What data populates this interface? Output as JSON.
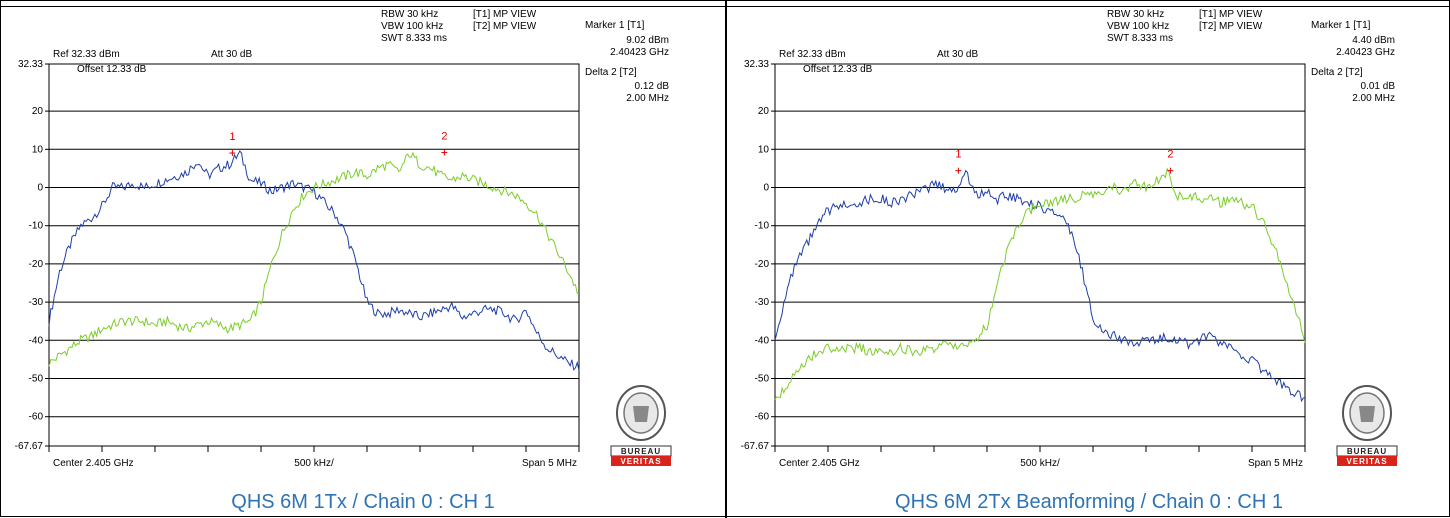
{
  "chart_data": [
    {
      "type": "line",
      "caption": "QHS 6M 1Tx / Chain 0 : CH 1",
      "header": {
        "ref": "Ref 32.33 dBm",
        "att": "Att  30 dB",
        "rbw": "RBW 30 kHz",
        "vbw": "VBW 100 kHz",
        "swt": "SWT 8.333 ms",
        "t1": "[T1] MP VIEW",
        "t2": "[T2] MP VIEW",
        "offset": "Offset 12.33 dB"
      },
      "markers_panel": {
        "marker1_label": "Marker 1 [T1]",
        "marker1_level": "9.02 dBm",
        "marker1_freq": "2.40423 GHz",
        "delta_label": "Delta 2 [T2]",
        "delta_level": "0.12 dB",
        "delta_freq": "2.00 MHz"
      },
      "y_ticks": [
        "32.33",
        "20",
        "10",
        "0",
        "-10",
        "-20",
        "-30",
        "-40",
        "-50",
        "-60",
        "-67.67"
      ],
      "ylim": [
        -67.67,
        32.33
      ],
      "x_labels": {
        "center": "Center 2.405 GHz",
        "div": "500 kHz/",
        "span": "Span 5 MHz"
      },
      "xlim": [
        2.4025,
        2.4075
      ],
      "markers": [
        {
          "label": "1",
          "x": 2.40423,
          "y": 9.02
        },
        {
          "label": "2",
          "x": 2.40623,
          "y": 9.14
        }
      ],
      "series": [
        {
          "color": "#1f3fa8",
          "x": [
            2.4025,
            2.4026,
            2.4027,
            2.4028,
            2.4029,
            2.403,
            2.4031,
            2.4032,
            2.4033,
            2.4034,
            2.4035,
            2.4036,
            2.4037,
            2.4038,
            2.4039,
            2.404,
            2.4041,
            2.4042,
            2.4043,
            2.4044,
            2.4045,
            2.4046,
            2.4047,
            2.4048,
            2.4049,
            2.405,
            2.4051,
            2.4052,
            2.4053,
            2.4054,
            2.4055,
            2.4056,
            2.4057,
            2.4058,
            2.4059,
            2.406,
            2.4061,
            2.4062,
            2.4063,
            2.4064,
            2.4065,
            2.4066,
            2.4067,
            2.4068,
            2.4069,
            2.407,
            2.4071,
            2.4072,
            2.4073,
            2.4074,
            2.4075
          ],
          "y": [
            -35,
            -22,
            -15,
            -10,
            -8,
            -5,
            0,
            0,
            1,
            0,
            1,
            2,
            3,
            4,
            7,
            3,
            5,
            6,
            9,
            2,
            1,
            -1,
            0,
            1,
            0,
            -1,
            -4,
            -7,
            -12,
            -20,
            -30,
            -33,
            -33,
            -32,
            -33,
            -34,
            -33,
            -32,
            -31,
            -34,
            -33,
            -32,
            -32,
            -33,
            -35,
            -32,
            -38,
            -42,
            -44,
            -46,
            -47
          ]
        },
        {
          "color": "#7ccd2a",
          "x": [
            2.4025,
            2.4026,
            2.4027,
            2.4028,
            2.4029,
            2.403,
            2.4031,
            2.4032,
            2.4033,
            2.4034,
            2.4035,
            2.4036,
            2.4037,
            2.4038,
            2.4039,
            2.404,
            2.4041,
            2.4042,
            2.4043,
            2.4044,
            2.4045,
            2.4046,
            2.4047,
            2.4048,
            2.4049,
            2.405,
            2.4051,
            2.4052,
            2.4053,
            2.4054,
            2.4055,
            2.4056,
            2.4057,
            2.4058,
            2.4059,
            2.406,
            2.4061,
            2.4062,
            2.4063,
            2.4064,
            2.4065,
            2.4066,
            2.4067,
            2.4068,
            2.4069,
            2.407,
            2.4071,
            2.4072,
            2.4073,
            2.4074,
            2.4075
          ],
          "y": [
            -46,
            -44,
            -42,
            -40,
            -39,
            -37,
            -36,
            -35,
            -35,
            -35,
            -36,
            -35,
            -36,
            -37,
            -36,
            -35,
            -36,
            -37,
            -36,
            -35,
            -30,
            -20,
            -12,
            -6,
            -2,
            0,
            1,
            2,
            3,
            4,
            3,
            5,
            6,
            4,
            9,
            6,
            5,
            3,
            2,
            3,
            2,
            1,
            0,
            -1,
            -2,
            -4,
            -7,
            -12,
            -17,
            -22,
            -28
          ]
        }
      ]
    },
    {
      "type": "line",
      "caption": "QHS 6M 2Tx Beamforming / Chain 0 : CH 1",
      "header": {
        "ref": "Ref 32.33 dBm",
        "att": "Att  30 dB",
        "rbw": "RBW 30 kHz",
        "vbw": "VBW 100 kHz",
        "swt": "SWT 8.333 ms",
        "t1": "[T1] MP VIEW",
        "t2": "[T2] MP VIEW",
        "offset": "Offset 12.33 dB"
      },
      "markers_panel": {
        "marker1_label": "Marker 1 [T1]",
        "marker1_level": "4.40 dBm",
        "marker1_freq": "2.40423 GHz",
        "delta_label": "Delta 2 [T2]",
        "delta_level": "0.01 dB",
        "delta_freq": "2.00 MHz"
      },
      "y_ticks": [
        "32.33",
        "20",
        "10",
        "0",
        "-10",
        "-20",
        "-30",
        "-40",
        "-50",
        "-60",
        "-67.67"
      ],
      "ylim": [
        -67.67,
        32.33
      ],
      "x_labels": {
        "center": "Center 2.405 GHz",
        "div": "500 kHz/",
        "span": "Span 5 MHz"
      },
      "xlim": [
        2.4025,
        2.4075
      ],
      "markers": [
        {
          "label": "1",
          "x": 2.40423,
          "y": 4.4
        },
        {
          "label": "2",
          "x": 2.40623,
          "y": 4.41
        }
      ],
      "series": [
        {
          "color": "#1f3fa8",
          "x": [
            2.4025,
            2.4026,
            2.4027,
            2.4028,
            2.4029,
            2.403,
            2.4031,
            2.4032,
            2.4033,
            2.4034,
            2.4035,
            2.4036,
            2.4037,
            2.4038,
            2.4039,
            2.404,
            2.4041,
            2.4042,
            2.4043,
            2.4044,
            2.4045,
            2.4046,
            2.4047,
            2.4048,
            2.4049,
            2.405,
            2.4051,
            2.4052,
            2.4053,
            2.4054,
            2.4055,
            2.4056,
            2.4057,
            2.4058,
            2.4059,
            2.406,
            2.4061,
            2.4062,
            2.4063,
            2.4064,
            2.4065,
            2.4066,
            2.4067,
            2.4068,
            2.4069,
            2.407,
            2.4071,
            2.4072,
            2.4073,
            2.4074,
            2.4075
          ],
          "y": [
            -40,
            -28,
            -20,
            -15,
            -10,
            -6,
            -5,
            -4,
            -4,
            -3,
            -3,
            -4,
            -3,
            -2,
            -1,
            1,
            0,
            -1,
            4,
            -2,
            -1,
            -3,
            -2,
            -3,
            -4,
            -5,
            -6,
            -8,
            -12,
            -22,
            -34,
            -38,
            -39,
            -40,
            -41,
            -40,
            -40,
            -39,
            -40,
            -41,
            -40,
            -39,
            -41,
            -42,
            -44,
            -45,
            -48,
            -50,
            -52,
            -54,
            -55
          ]
        },
        {
          "color": "#7ccd2a",
          "x": [
            2.4025,
            2.4026,
            2.4027,
            2.4028,
            2.4029,
            2.403,
            2.4031,
            2.4032,
            2.4033,
            2.4034,
            2.4035,
            2.4036,
            2.4037,
            2.4038,
            2.4039,
            2.404,
            2.4041,
            2.4042,
            2.4043,
            2.4044,
            2.4045,
            2.4046,
            2.4047,
            2.4048,
            2.4049,
            2.405,
            2.4051,
            2.4052,
            2.4053,
            2.4054,
            2.4055,
            2.4056,
            2.4057,
            2.4058,
            2.4059,
            2.406,
            2.4061,
            2.4062,
            2.4063,
            2.4064,
            2.4065,
            2.4066,
            2.4067,
            2.4068,
            2.4069,
            2.407,
            2.4071,
            2.4072,
            2.4073,
            2.4074,
            2.4075
          ],
          "y": [
            -56,
            -52,
            -48,
            -45,
            -43,
            -42,
            -43,
            -42,
            -42,
            -43,
            -42,
            -43,
            -42,
            -43,
            -43,
            -42,
            -41,
            -42,
            -41,
            -40,
            -36,
            -25,
            -16,
            -10,
            -6,
            -4,
            -4,
            -3,
            -3,
            -2,
            -2,
            -1,
            0,
            -1,
            1,
            0,
            2,
            4,
            -2,
            -2,
            -3,
            -2,
            -4,
            -3,
            -4,
            -5,
            -9,
            -15,
            -22,
            -31,
            -40
          ]
        }
      ]
    }
  ]
}
